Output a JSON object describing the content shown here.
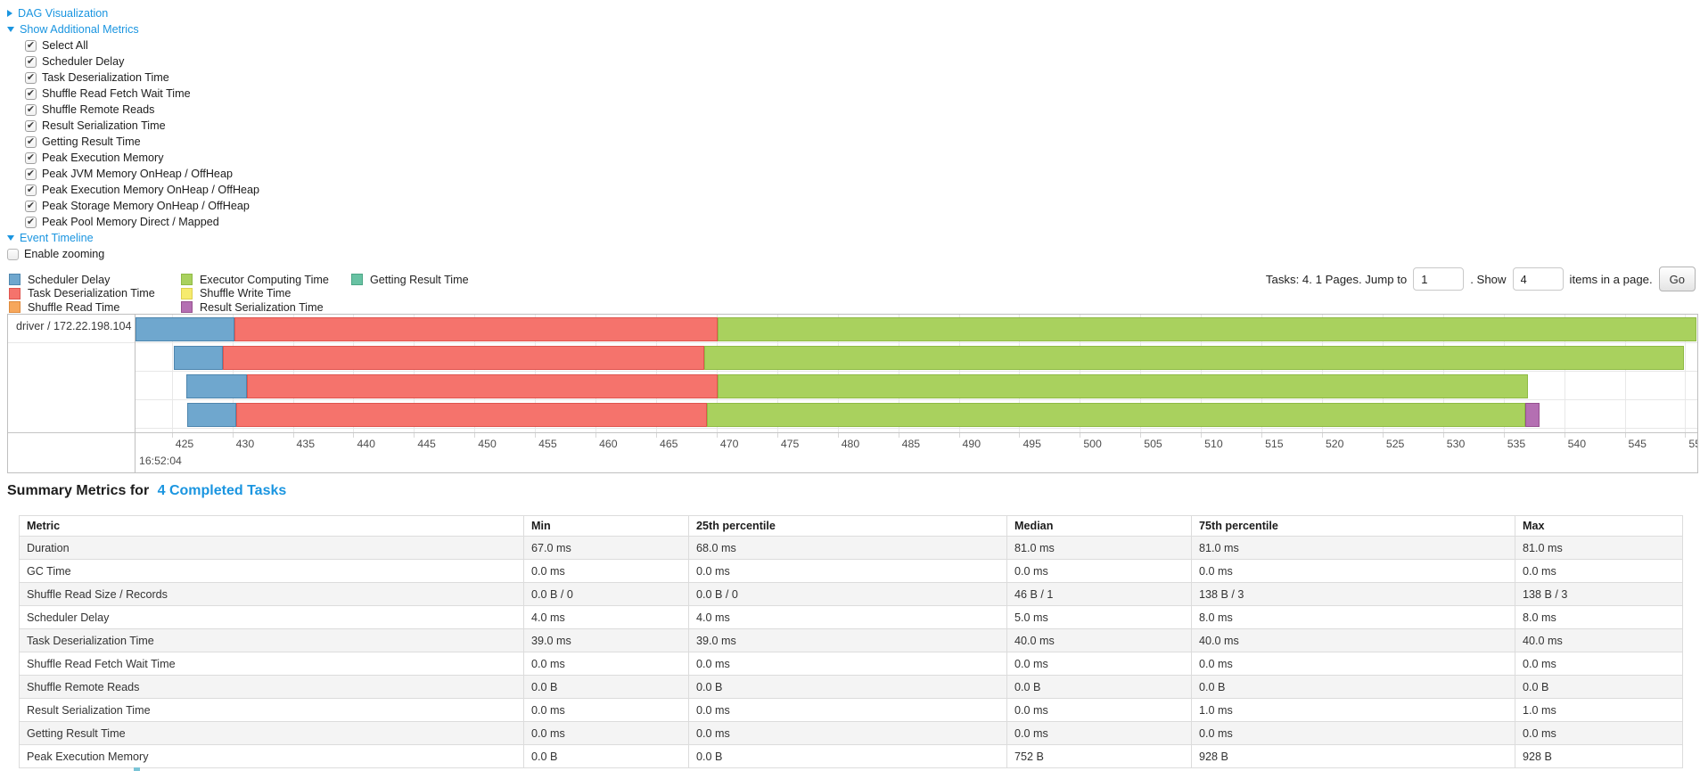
{
  "controls": {
    "dag_link": "DAG Visualization",
    "metrics_link": "Show Additional Metrics",
    "timeline_link": "Event Timeline",
    "metric_options": [
      "Select All",
      "Scheduler Delay",
      "Task Deserialization Time",
      "Shuffle Read Fetch Wait Time",
      "Shuffle Remote Reads",
      "Result Serialization Time",
      "Getting Result Time",
      "Peak Execution Memory",
      "Peak JVM Memory OnHeap / OffHeap",
      "Peak Execution Memory OnHeap / OffHeap",
      "Peak Storage Memory OnHeap / OffHeap",
      "Peak Pool Memory Direct / Mapped"
    ],
    "enable_zooming_label": "Enable zooming",
    "link_color": "#1a95e0"
  },
  "legend": {
    "columns": [
      [
        {
          "key": "scheduler-delay",
          "label": "Scheduler Delay"
        },
        {
          "key": "task-deserialization-time",
          "label": "Task Deserialization Time"
        },
        {
          "key": "shuffle-read-time",
          "label": "Shuffle Read Time"
        }
      ],
      [
        {
          "key": "executor-computing-time",
          "label": "Executor Computing Time"
        },
        {
          "key": "shuffle-write-time",
          "label": "Shuffle Write Time"
        },
        {
          "key": "result-serialization-time",
          "label": "Result Serialization Time"
        }
      ],
      [
        {
          "key": "getting-result-time",
          "label": "Getting Result Time"
        }
      ]
    ]
  },
  "pagination": {
    "tasks_text": "Tasks: 4. 1 Pages. Jump to",
    "jump_value": "1",
    "show_text": ". Show",
    "show_value": "4",
    "items_text": "items in a page.",
    "go_label": "Go"
  },
  "chart_data": {
    "type": "timeline",
    "group_label": "driver / 172.22.198.104",
    "axis": {
      "min_ms": 422,
      "max_ms": 551,
      "tick_start": 425,
      "tick_end": 550,
      "tick_step": 5,
      "major_label": "16:52:04",
      "unit": "ms after 16:52:04"
    },
    "colors": {
      "scheduler-delay": {
        "fill": "#6FA7CE",
        "border": "#4E86AE"
      },
      "task-deserialization-time": {
        "fill": "#F5736C",
        "border": "#DF544E"
      },
      "shuffle-read-time": {
        "fill": "#F6A75C",
        "border": "#DE8A3C"
      },
      "executor-computing-time": {
        "fill": "#A9D15E",
        "border": "#8FBA45"
      },
      "shuffle-write-time": {
        "fill": "#F6EB6E",
        "border": "#DCD04F"
      },
      "result-serialization-time": {
        "fill": "#B46FB2",
        "border": "#96518F"
      },
      "getting-result-time": {
        "fill": "#68C2A3",
        "border": "#4BA685"
      }
    },
    "tasks": [
      {
        "segments": [
          {
            "key": "scheduler-delay",
            "start": 422.0,
            "end": 430.2
          },
          {
            "key": "task-deserialization-time",
            "start": 430.2,
            "end": 470.1
          },
          {
            "key": "executor-computing-time",
            "start": 470.1,
            "end": 550.9
          }
        ]
      },
      {
        "segments": [
          {
            "key": "scheduler-delay",
            "start": 425.2,
            "end": 429.2
          },
          {
            "key": "task-deserialization-time",
            "start": 429.2,
            "end": 469.0
          },
          {
            "key": "executor-computing-time",
            "start": 469.0,
            "end": 549.9
          }
        ]
      },
      {
        "segments": [
          {
            "key": "scheduler-delay",
            "start": 426.2,
            "end": 431.2
          },
          {
            "key": "task-deserialization-time",
            "start": 431.2,
            "end": 470.1
          },
          {
            "key": "executor-computing-time",
            "start": 470.1,
            "end": 537.0
          }
        ]
      },
      {
        "segments": [
          {
            "key": "scheduler-delay",
            "start": 426.3,
            "end": 430.3
          },
          {
            "key": "task-deserialization-time",
            "start": 430.3,
            "end": 469.2
          },
          {
            "key": "executor-computing-time",
            "start": 469.2,
            "end": 536.8
          },
          {
            "key": "result-serialization-time",
            "start": 536.8,
            "end": 538.0
          }
        ]
      }
    ]
  },
  "summary": {
    "title_prefix": "Summary Metrics for",
    "title_link": "4 Completed Tasks",
    "table": {
      "headers": [
        "Metric",
        "Min",
        "25th percentile",
        "Median",
        "75th percentile",
        "Max"
      ],
      "rows": [
        [
          "Duration",
          "67.0 ms",
          "68.0 ms",
          "81.0 ms",
          "81.0 ms",
          "81.0 ms"
        ],
        [
          "GC Time",
          "0.0 ms",
          "0.0 ms",
          "0.0 ms",
          "0.0 ms",
          "0.0 ms"
        ],
        [
          "Shuffle Read Size / Records",
          "0.0 B / 0",
          "0.0 B / 0",
          "46 B / 1",
          "138 B / 3",
          "138 B / 3"
        ],
        [
          "Scheduler Delay",
          "4.0 ms",
          "4.0 ms",
          "5.0 ms",
          "8.0 ms",
          "8.0 ms"
        ],
        [
          "Task Deserialization Time",
          "39.0 ms",
          "39.0 ms",
          "40.0 ms",
          "40.0 ms",
          "40.0 ms"
        ],
        [
          "Shuffle Read Fetch Wait Time",
          "0.0 ms",
          "0.0 ms",
          "0.0 ms",
          "0.0 ms",
          "0.0 ms"
        ],
        [
          "Shuffle Remote Reads",
          "0.0 B",
          "0.0 B",
          "0.0 B",
          "0.0 B",
          "0.0 B"
        ],
        [
          "Result Serialization Time",
          "0.0 ms",
          "0.0 ms",
          "0.0 ms",
          "1.0 ms",
          "1.0 ms"
        ],
        [
          "Getting Result Time",
          "0.0 ms",
          "0.0 ms",
          "0.0 ms",
          "0.0 ms",
          "0.0 ms"
        ],
        [
          "Peak Execution Memory",
          "0.0 B",
          "0.0 B",
          "752 B",
          "928 B",
          "928 B"
        ]
      ]
    }
  }
}
